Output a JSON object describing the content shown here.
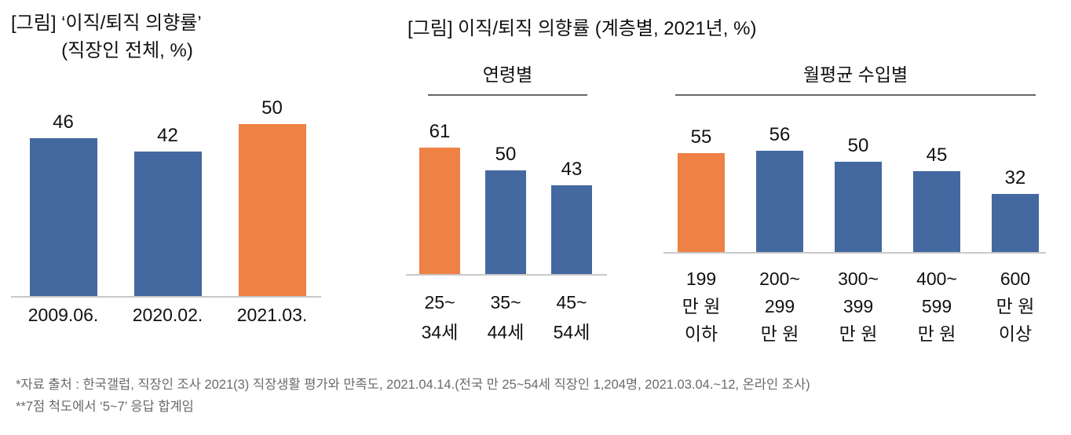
{
  "colors": {
    "blue": "#4468A0",
    "orange": "#EE8143",
    "axis": "#c9c9c9",
    "rule": "#666666",
    "footnote": "#6a6a6a",
    "text": "#111111"
  },
  "left_chart": {
    "title_line1": "[그림] ‘이직/퇴직 의향률’",
    "title_line2": "(직장인 전체, %)"
  },
  "right_chart": {
    "title": "[그림] 이직/퇴직 의향률 (계층별, 2021년, %)",
    "group_headers": [
      "연령별",
      "월평균 수입별"
    ]
  },
  "footnotes": [
    "*자료 출처 : 한국갤럽, 직장인 조사 2021(3) 직장생활 평가와 만족도, 2021.04.14.(전국 만 25~54세 직장인 1,204명, 2021.03.04.~12, 온라인 조사)",
    "**7점 척도에서 ‘5~7’ 응답 합계임"
  ],
  "chart_data": [
    {
      "type": "bar",
      "title": "[그림] ‘이직/퇴직 의향률’ (직장인 전체, %)",
      "categories": [
        "2009.06.",
        "2020.02.",
        "2021.03."
      ],
      "category_lines": [
        [
          "2009.06."
        ],
        [
          "2020.02."
        ],
        [
          "2021.03."
        ]
      ],
      "values": [
        46,
        42,
        50
      ],
      "bar_colors": [
        "blue",
        "blue",
        "orange"
      ],
      "ylabel": "%",
      "ylim": [
        0,
        57
      ],
      "grid": false,
      "legend": "none",
      "data_labels": true
    },
    {
      "type": "bar",
      "group_label": "연령별",
      "title": "이직/퇴직 의향률 (연령별, 2021년, %)",
      "categories": [
        "25~34세",
        "35~44세",
        "45~54세"
      ],
      "category_lines": [
        [
          "25~",
          "34세"
        ],
        [
          "35~",
          "44세"
        ],
        [
          "45~",
          "54세"
        ]
      ],
      "values": [
        61,
        50,
        43
      ],
      "bar_colors": [
        "orange",
        "blue",
        "blue"
      ],
      "ylabel": "%",
      "ylim": [
        0,
        70
      ],
      "grid": false,
      "legend": "none",
      "data_labels": true
    },
    {
      "type": "bar",
      "group_label": "월평균 수입별",
      "title": "이직/퇴직 의향률 (월평균 수입별, 2021년, %)",
      "categories": [
        "199만 원 이하",
        "200~299만 원",
        "300~399만 원",
        "400~599만 원",
        "600만 원 이상"
      ],
      "category_lines": [
        [
          "199",
          "만 원",
          "이하"
        ],
        [
          "200~",
          "299",
          "만 원"
        ],
        [
          "300~",
          "399",
          "만 원"
        ],
        [
          "400~",
          "599",
          "만 원"
        ],
        [
          "600",
          "만 원",
          "이상"
        ]
      ],
      "values": [
        55,
        56,
        50,
        45,
        32
      ],
      "bar_colors": [
        "orange",
        "blue",
        "blue",
        "blue",
        "blue"
      ],
      "ylabel": "%",
      "ylim": [
        0,
        62
      ],
      "grid": false,
      "legend": "none",
      "data_labels": true
    }
  ]
}
